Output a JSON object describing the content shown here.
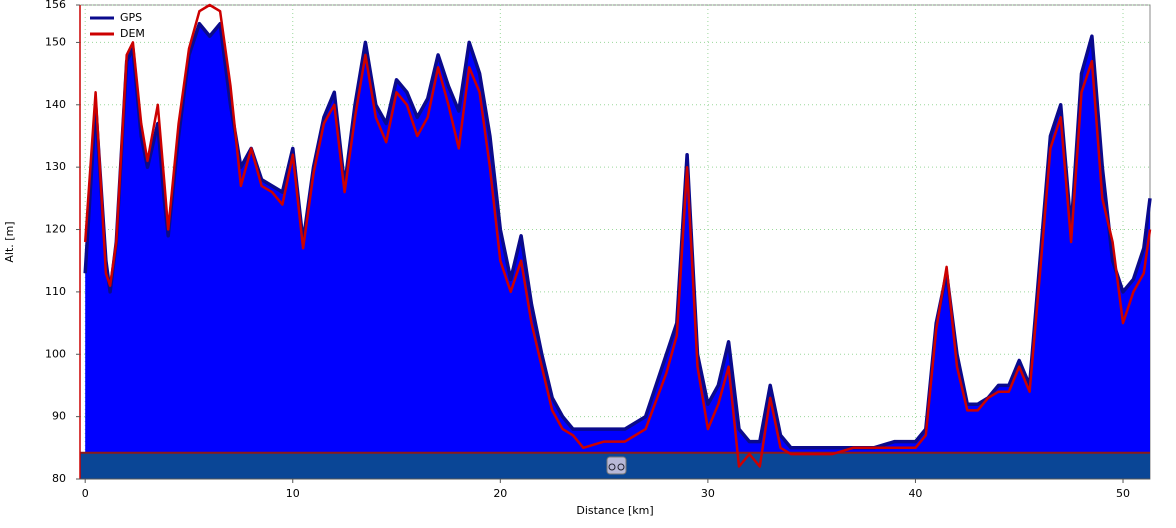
{
  "chart_data": {
    "type": "area",
    "xlabel": "Distance [km]",
    "ylabel": "Alt. [m]",
    "x": [
      0,
      0.5,
      1,
      1.2,
      1.5,
      2,
      2.3,
      2.7,
      3,
      3.5,
      3.8,
      4,
      4.5,
      5,
      5.5,
      6,
      6.5,
      7,
      7.5,
      8,
      8.5,
      9,
      9.5,
      10,
      10.5,
      11,
      11.5,
      12,
      12.5,
      13,
      13.5,
      14,
      14.5,
      15,
      15.5,
      16,
      16.5,
      17,
      17.5,
      18,
      18.5,
      19,
      19.5,
      20,
      20.5,
      21,
      21.5,
      22,
      22.5,
      23,
      23.5,
      24,
      25,
      26,
      27,
      28,
      28.5,
      29,
      29.5,
      30,
      30.5,
      31,
      31.5,
      32,
      32.5,
      33,
      33.5,
      34,
      35,
      36,
      37,
      38,
      39,
      40,
      40.5,
      41,
      41.5,
      42,
      42.5,
      43,
      43.5,
      44,
      44.5,
      45,
      45.5,
      46,
      46.5,
      47,
      47.5,
      48,
      48.5,
      49,
      49.5,
      50,
      50.5,
      51,
      51.3
    ],
    "series": [
      {
        "name": "GPS",
        "color": "#0a0a8c",
        "fill": "#0000ff",
        "values": [
          113,
          140,
          115,
          110,
          118,
          147,
          149,
          135,
          130,
          137,
          125,
          119,
          135,
          148,
          153,
          151,
          153,
          140,
          130,
          133,
          128,
          127,
          126,
          133,
          118,
          130,
          138,
          142,
          127,
          140,
          150,
          140,
          137,
          144,
          142,
          138,
          141,
          148,
          143,
          139,
          150,
          145,
          135,
          120,
          112,
          119,
          108,
          100,
          93,
          90,
          88,
          88,
          88,
          88,
          90,
          100,
          105,
          132,
          100,
          92,
          95,
          102,
          88,
          86,
          86,
          95,
          87,
          85,
          85,
          85,
          85,
          85,
          86,
          86,
          88,
          105,
          113,
          100,
          92,
          92,
          93,
          95,
          95,
          99,
          95,
          115,
          135,
          140,
          120,
          145,
          151,
          130,
          115,
          110,
          112,
          117,
          125
        ]
      },
      {
        "name": "DEM",
        "color": "#cc0000",
        "values": [
          118,
          142,
          113,
          111,
          118,
          148,
          150,
          137,
          131,
          140,
          128,
          120,
          137,
          149,
          155,
          156,
          155,
          143,
          127,
          133,
          127,
          126,
          124,
          132,
          117,
          129,
          137,
          140,
          126,
          138,
          148,
          138,
          134,
          142,
          140,
          135,
          138,
          146,
          140,
          133,
          146,
          142,
          130,
          115,
          110,
          115,
          105,
          98,
          91,
          88,
          87,
          85,
          86,
          86,
          88,
          97,
          103,
          130,
          98,
          88,
          92,
          98,
          82,
          84,
          82,
          93,
          85,
          84,
          84,
          84,
          85,
          85,
          85,
          85,
          87,
          104,
          114,
          98,
          91,
          91,
          93,
          94,
          94,
          98,
          94,
          113,
          133,
          138,
          118,
          142,
          147,
          125,
          118,
          105,
          110,
          113,
          120
        ]
      }
    ],
    "ground_level": 84.2,
    "xlim": [
      -0.25,
      51.3
    ],
    "ylim": [
      80,
      156
    ],
    "xticks": [
      0,
      10,
      20,
      30,
      40,
      50
    ],
    "yticks": [
      80,
      90,
      100,
      110,
      120,
      130,
      140,
      150,
      156
    ],
    "grid": true,
    "legend": "top-left"
  }
}
